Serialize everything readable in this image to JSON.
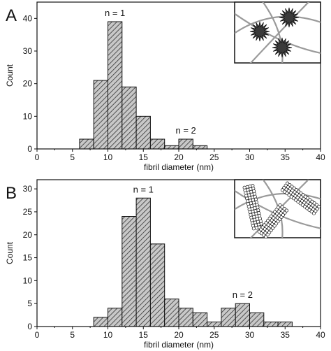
{
  "chart_data": [
    {
      "type": "bar",
      "panel_label": "A",
      "x_bins_start": [
        6,
        8,
        10,
        12,
        14,
        16,
        18,
        20,
        22
      ],
      "bin_width": 2,
      "values": [
        3,
        21,
        39,
        19,
        10,
        3,
        1,
        3,
        1
      ],
      "xlabel": "fibril diameter (nm)",
      "ylabel": "Count",
      "xlim": [
        0,
        40
      ],
      "ylim": [
        0,
        45
      ],
      "xticks": [
        0,
        5,
        10,
        15,
        20,
        25,
        30,
        35,
        40
      ],
      "yticks": [
        0,
        10,
        20,
        30,
        40
      ],
      "annotations": [
        "n = 1",
        "n = 2"
      ],
      "bar_fill": "#c8c8c8",
      "hatch": "diagonal",
      "inset": "schematic-starlike-aggregates-on-fibrils"
    },
    {
      "type": "bar",
      "panel_label": "B",
      "x_bins_start": [
        8,
        10,
        12,
        14,
        16,
        18,
        20,
        22,
        24,
        26,
        28,
        30,
        32,
        34
      ],
      "bin_width": 2,
      "values": [
        2,
        4,
        24,
        28,
        18,
        6,
        4,
        3,
        1,
        4,
        5,
        3,
        1,
        1
      ],
      "xlabel": "fibril diameter (nm)",
      "ylabel": "Count",
      "xlim": [
        0,
        40
      ],
      "ylim": [
        0,
        32
      ],
      "xticks": [
        0,
        5,
        10,
        15,
        20,
        25,
        30,
        35,
        40
      ],
      "yticks": [
        0,
        5,
        10,
        15,
        20,
        25,
        30
      ],
      "annotations": [
        "n = 1",
        "n = 2"
      ],
      "bar_fill": "#c8c8c8",
      "hatch": "diagonal",
      "inset": "schematic-nanotube-rods-on-fibrils"
    }
  ]
}
